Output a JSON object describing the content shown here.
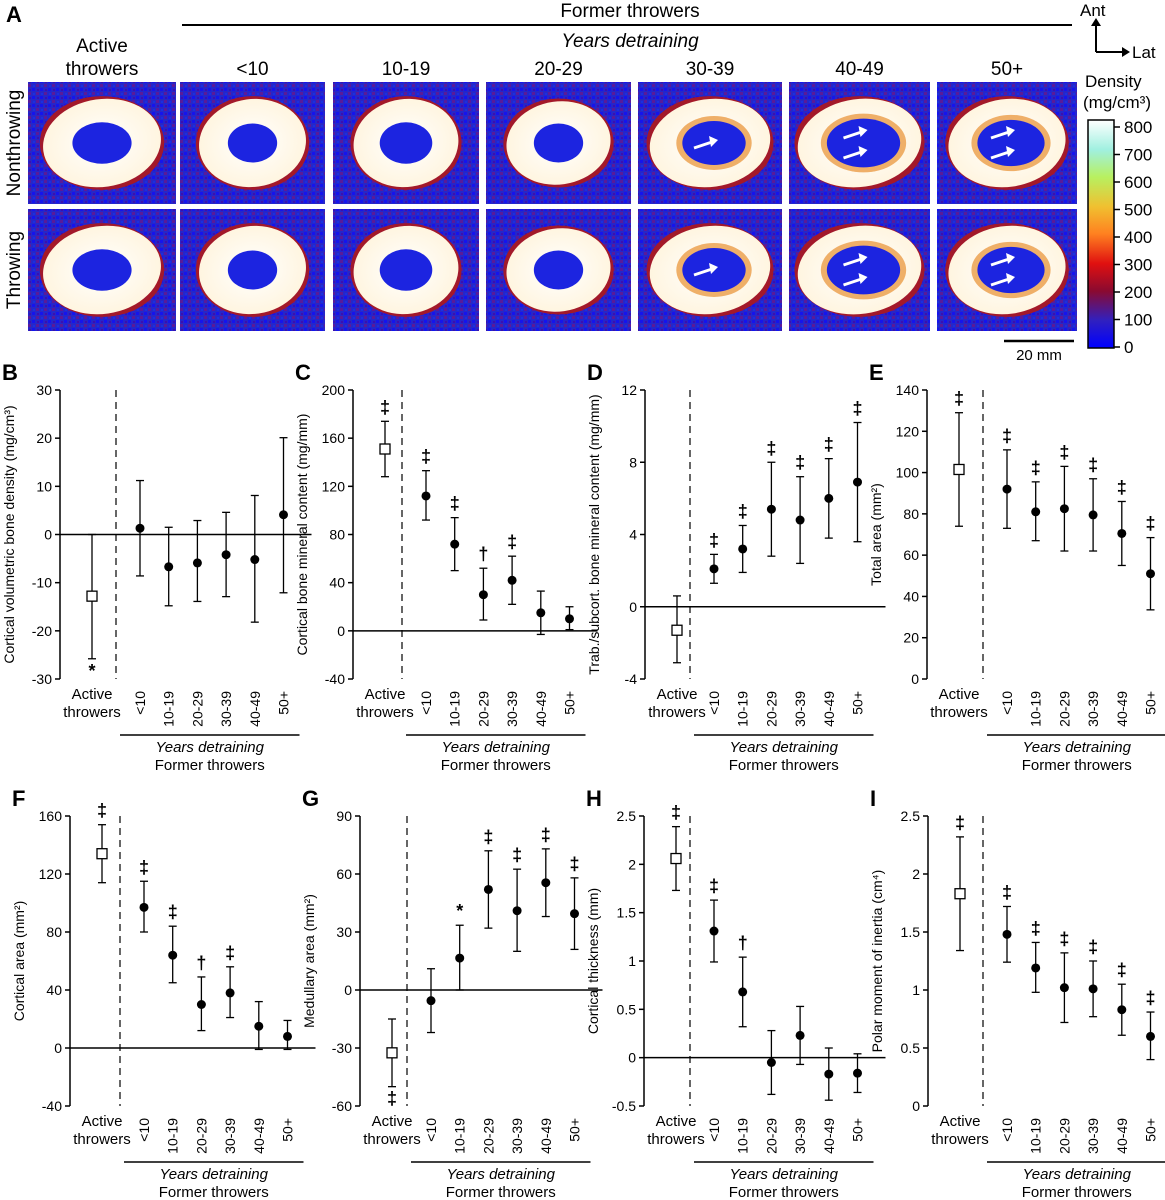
{
  "panel_a": {
    "label": "A",
    "group_title": "Former throwers",
    "group_subtitle": "Years detraining",
    "active_header_line1": "Active",
    "active_header_line2": "throwers",
    "columns": [
      "<10",
      "10-19",
      "20-29",
      "30-39",
      "40-49",
      "50+"
    ],
    "rows": [
      "Nonthrowing",
      "Throwing"
    ],
    "orientation_ant": "Ant",
    "orientation_lat": "Lat",
    "scale_bar": "20 mm",
    "colorbar_title_line1": "Density",
    "colorbar_title_line2": "(mg/cm³)",
    "colorbar_ticks": [
      "800",
      "700",
      "600",
      "500",
      "400",
      "300",
      "200",
      "100",
      "0"
    ],
    "colors": {
      "low": "#1010ff",
      "mid": "#b01020",
      "high": "#ffffff"
    }
  },
  "common": {
    "active_label_line1": "Active",
    "active_label_line2": "throwers",
    "categories": [
      "<10",
      "10-19",
      "20-29",
      "30-39",
      "40-49",
      "50+"
    ],
    "years_label": "Years detraining",
    "former_label": "Former throwers"
  },
  "chart_data": [
    {
      "id": "B",
      "type": "scatter",
      "ylabel": "Cortical volumetric bone density (mg/cm³)",
      "ylim": [
        -30,
        30
      ],
      "yticks": [
        -30,
        -20,
        -10,
        0,
        10,
        20,
        30
      ],
      "active": {
        "mean": -12.8,
        "lo": -25.8,
        "hi": 0
      },
      "former": {
        "mean": [
          1.3,
          -6.7,
          -5.9,
          -4.2,
          -5.2,
          4.1
        ],
        "lo": [
          -8.6,
          -14.8,
          -13.9,
          -12.9,
          -18.2,
          -12.1
        ],
        "hi": [
          11.2,
          1.5,
          2.9,
          4.6,
          8.1,
          20.1
        ]
      },
      "active_sig": "*",
      "active_sig_pos": "below",
      "former_sig": [
        "",
        "",
        "",
        "",
        "",
        ""
      ]
    },
    {
      "id": "C",
      "type": "scatter",
      "ylabel": "Cortical bone mineral content (mg/mm)",
      "ylim": [
        -40,
        200
      ],
      "yticks": [
        -40,
        0,
        40,
        80,
        120,
        160,
        200
      ],
      "active": {
        "mean": 151,
        "lo": 128,
        "hi": 174
      },
      "former": {
        "mean": [
          112,
          72,
          30,
          42,
          15,
          10
        ],
        "lo": [
          92,
          50,
          9,
          22,
          -3,
          1
        ],
        "hi": [
          133,
          94,
          52,
          62,
          33,
          20
        ]
      },
      "active_sig": "‡",
      "active_sig_pos": "above",
      "former_sig": [
        "‡",
        "‡",
        "†",
        "‡",
        "",
        ""
      ]
    },
    {
      "id": "D",
      "type": "scatter",
      "ylabel": "Trab./subcort. bone mineral content (mg/mm)",
      "ylim": [
        -4,
        12
      ],
      "yticks": [
        -4,
        0,
        4,
        8,
        12
      ],
      "active": {
        "mean": -1.3,
        "lo": -3.1,
        "hi": 0.6
      },
      "former": {
        "mean": [
          2.1,
          3.2,
          5.4,
          4.8,
          6.0,
          6.9
        ],
        "lo": [
          1.3,
          1.9,
          2.8,
          2.4,
          3.8,
          3.6
        ],
        "hi": [
          2.9,
          4.5,
          8.0,
          7.2,
          8.2,
          10.2
        ]
      },
      "active_sig": "",
      "active_sig_pos": "above",
      "former_sig": [
        "‡",
        "‡",
        "‡",
        "‡",
        "‡",
        "‡"
      ]
    },
    {
      "id": "E",
      "type": "scatter",
      "ylabel": "Total area (mm²)",
      "ylim": [
        0,
        140
      ],
      "yticks": [
        0,
        20,
        40,
        60,
        80,
        100,
        120,
        140
      ],
      "active": {
        "mean": 101.5,
        "lo": 74,
        "hi": 129
      },
      "former": {
        "mean": [
          92,
          81,
          82.5,
          79.5,
          70.5,
          51
        ],
        "lo": [
          73,
          67,
          62,
          62,
          55,
          33.5
        ],
        "hi": [
          111,
          95.5,
          103,
          97,
          86,
          68.5
        ]
      },
      "active_sig": "‡",
      "active_sig_pos": "above",
      "former_sig": [
        "‡",
        "‡",
        "‡",
        "‡",
        "‡",
        "‡"
      ]
    },
    {
      "id": "F",
      "type": "scatter",
      "ylabel": "Cortical area (mm²)",
      "ylim": [
        -40,
        160
      ],
      "yticks": [
        -40,
        0,
        40,
        80,
        120,
        160
      ],
      "active": {
        "mean": 134,
        "lo": 114,
        "hi": 154
      },
      "former": {
        "mean": [
          97,
          64,
          30,
          38,
          15,
          8
        ],
        "lo": [
          80,
          45,
          12,
          21,
          -1,
          -1
        ],
        "hi": [
          115,
          84,
          49,
          56,
          32,
          19
        ]
      },
      "active_sig": "‡",
      "active_sig_pos": "above",
      "former_sig": [
        "‡",
        "‡",
        "†",
        "‡",
        "",
        ""
      ]
    },
    {
      "id": "G",
      "type": "scatter",
      "ylabel": "Medullary area (mm²)",
      "ylim": [
        -60,
        90
      ],
      "yticks": [
        -60,
        -30,
        0,
        30,
        60,
        90
      ],
      "active": {
        "mean": -32.5,
        "lo": -50,
        "hi": -15
      },
      "former": {
        "mean": [
          -5.5,
          16.5,
          52,
          41,
          55.5,
          39.5
        ],
        "lo": [
          -22,
          0,
          32,
          20,
          38,
          21
        ],
        "hi": [
          11,
          33.5,
          72,
          62.5,
          73,
          58
        ]
      },
      "active_sig": "‡",
      "active_sig_pos": "below",
      "former_sig": [
        "",
        "*",
        "‡",
        "‡",
        "‡",
        "‡"
      ]
    },
    {
      "id": "H",
      "type": "scatter",
      "ylabel": "Cortical thickness (mm)",
      "ylim": [
        -0.5,
        2.5
      ],
      "yticks": [
        -0.5,
        0,
        0.5,
        1,
        1.5,
        2,
        2.5
      ],
      "active": {
        "mean": 2.06,
        "lo": 1.73,
        "hi": 2.39
      },
      "former": {
        "mean": [
          1.31,
          0.68,
          -0.05,
          0.23,
          -0.17,
          -0.16
        ],
        "lo": [
          0.99,
          0.32,
          -0.38,
          -0.07,
          -0.44,
          -0.36
        ],
        "hi": [
          1.63,
          1.04,
          0.28,
          0.53,
          0.1,
          0.04
        ]
      },
      "active_sig": "‡",
      "active_sig_pos": "above",
      "former_sig": [
        "‡",
        "†",
        "",
        "",
        "",
        ""
      ]
    },
    {
      "id": "I",
      "type": "scatter",
      "ylabel": "Polar moment of inertia (cm⁴)",
      "ylim": [
        0,
        2.5
      ],
      "yticks": [
        0,
        0.5,
        1,
        1.5,
        2,
        2.5
      ],
      "active": {
        "mean": 1.83,
        "lo": 1.34,
        "hi": 2.32
      },
      "former": {
        "mean": [
          1.48,
          1.19,
          1.02,
          1.01,
          0.83,
          0.6
        ],
        "lo": [
          1.24,
          0.98,
          0.72,
          0.77,
          0.61,
          0.4
        ],
        "hi": [
          1.72,
          1.41,
          1.32,
          1.25,
          1.05,
          0.81
        ]
      },
      "active_sig": "‡",
      "active_sig_pos": "above",
      "former_sig": [
        "‡",
        "‡",
        "‡",
        "‡",
        "‡",
        "‡"
      ]
    }
  ]
}
